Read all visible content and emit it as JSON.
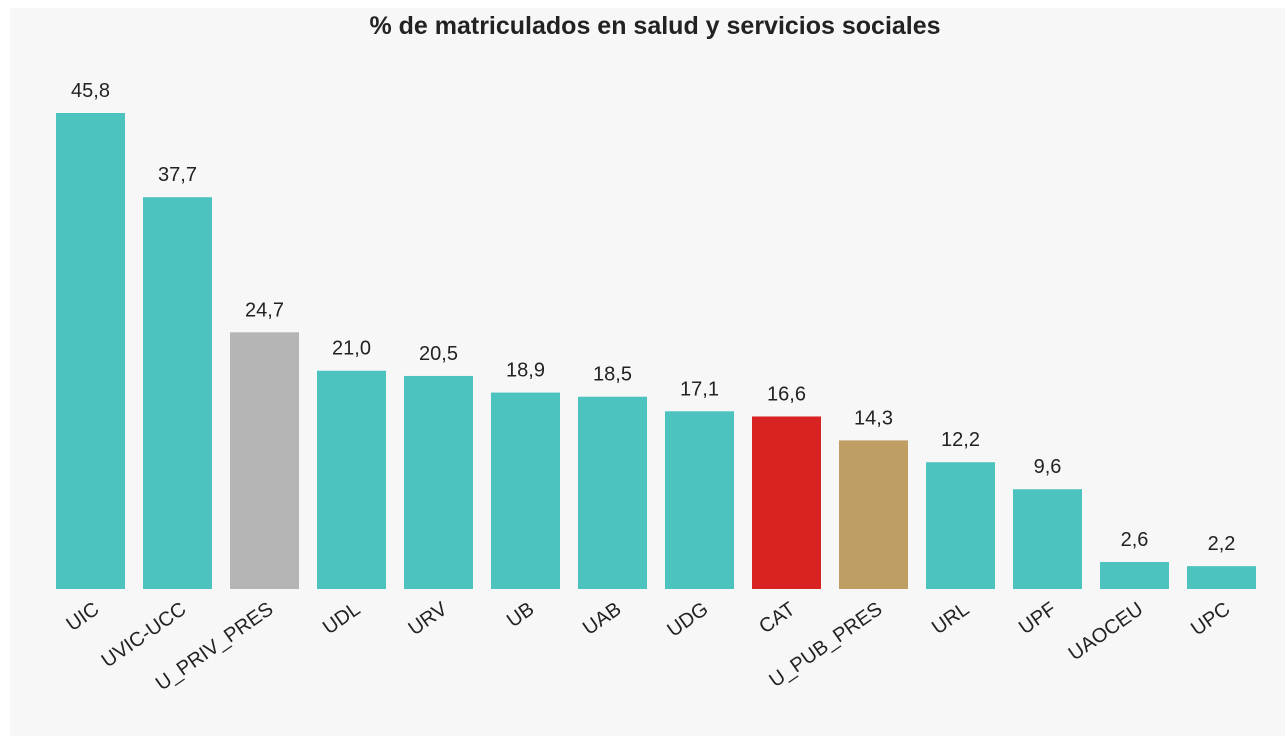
{
  "chart_data": {
    "type": "bar",
    "title": "% de matriculados en salud y servicios sociales",
    "categories": [
      "UIC",
      "UVIC-UCC",
      "U_PRIV_PRES",
      "UDL",
      "URV",
      "UB",
      "UAB",
      "UDG",
      "CAT",
      "U_PUB_PRES",
      "URL",
      "UPF",
      "UAOCEU",
      "UPC"
    ],
    "values": [
      45.8,
      37.7,
      24.7,
      21.0,
      20.5,
      18.9,
      18.5,
      17.1,
      16.6,
      14.3,
      12.2,
      9.6,
      2.6,
      2.2
    ],
    "value_labels": [
      "45,8",
      "37,7",
      "24,7",
      "21,0",
      "20,5",
      "18,9",
      "18,5",
      "17,1",
      "16,6",
      "14,3",
      "12,2",
      "9,6",
      "2,6",
      "2,2"
    ],
    "colors": [
      "#4dc3bf",
      "#4dc3bf",
      "#b5b5b5",
      "#4dc3bf",
      "#4dc3bf",
      "#4dc3bf",
      "#4dc3bf",
      "#4dc3bf",
      "#d92323",
      "#bf9e64",
      "#4dc3bf",
      "#4dc3bf",
      "#4dc3bf",
      "#4dc3bf"
    ]
  }
}
